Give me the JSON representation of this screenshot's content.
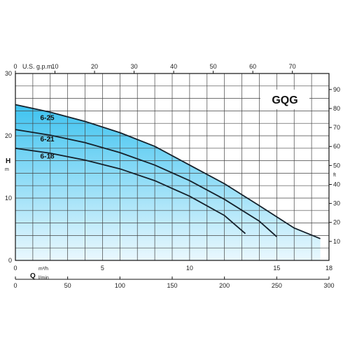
{
  "chart_data": {
    "type": "line",
    "title": "GQG",
    "x_axis": {
      "label": "Q",
      "unit": "m³/h",
      "range": [
        0,
        18
      ],
      "ticks": [
        0,
        5,
        10,
        15,
        18
      ]
    },
    "x_axis_secondary_bottom": {
      "unit": "l/min",
      "range": [
        0,
        300
      ],
      "ticks": [
        0,
        50,
        100,
        150,
        200,
        250,
        300
      ]
    },
    "x_axis_secondary_top": {
      "unit": "U.S. g.p.m.",
      "ticks": [
        0,
        10,
        20,
        30,
        40,
        50,
        60,
        70
      ],
      "tick_labels": [
        "0",
        "U.S. g.p.m.",
        "10",
        "20",
        "30",
        "40",
        "50",
        "60",
        "70"
      ]
    },
    "y_axis": {
      "label": "H",
      "unit": "m",
      "range": [
        0,
        30
      ],
      "ticks": [
        0,
        10,
        20,
        30
      ]
    },
    "y_axis_secondary": {
      "unit": "ft",
      "ticks": [
        10,
        20,
        30,
        40,
        50,
        60,
        70,
        80,
        90
      ]
    },
    "grid": true,
    "envelope": {
      "x": [
        0,
        2,
        4,
        6,
        8,
        10,
        12,
        14,
        16,
        17.5,
        17.5,
        0
      ],
      "y": [
        25,
        23.8,
        22.3,
        20.5,
        18.3,
        15.3,
        12.3,
        8.8,
        5.2,
        3.5,
        0,
        0
      ]
    },
    "series": [
      {
        "name": "6-25",
        "x": [
          0,
          2,
          4,
          6,
          8,
          10,
          12,
          14,
          16,
          17.5
        ],
        "y": [
          25,
          23.8,
          22.3,
          20.5,
          18.3,
          15.3,
          12.3,
          8.8,
          5.2,
          3.5
        ]
      },
      {
        "name": "6-21",
        "x": [
          0,
          2,
          4,
          6,
          8,
          10,
          12,
          14,
          15
        ],
        "y": [
          21,
          20.1,
          18.9,
          17.3,
          15.3,
          12.8,
          9.8,
          6.3,
          3.8
        ]
      },
      {
        "name": "6-18",
        "x": [
          0,
          2,
          4,
          6,
          8,
          10,
          12,
          13.2
        ],
        "y": [
          18,
          17.2,
          16.1,
          14.7,
          12.8,
          10.3,
          7.2,
          4.3
        ]
      }
    ],
    "labels": {
      "x_unit_top": "m³/h",
      "x_unit_bottom": "l/min",
      "y_unit_right": "ft",
      "y_unit_left": "m"
    }
  }
}
